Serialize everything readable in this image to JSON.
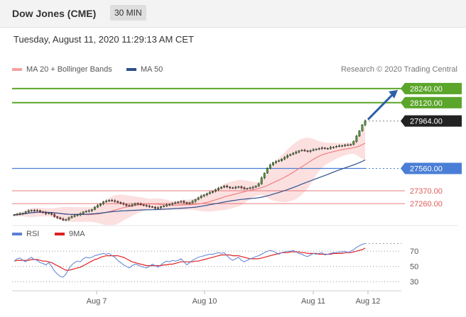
{
  "header": {
    "symbol": "Dow Jones (CME)",
    "timeframe": "30 MIN"
  },
  "timestamp": "Tuesday, August 11, 2020 11:29:13 AM CET",
  "legend": {
    "ma20": {
      "label": "MA 20 + Bollinger Bands",
      "color": "#f08080"
    },
    "ma50": {
      "label": "MA 50",
      "color": "#2d4f8f"
    }
  },
  "credit": "Research © 2020 Trading Central",
  "rsi_legend": {
    "rsi": {
      "label": "RSI",
      "color": "#5b7fd6"
    },
    "ma9": {
      "label": "9MA",
      "color": "#e02020"
    }
  },
  "chart_data": {
    "type": "candlestick",
    "x_ticks": [
      "Aug 7",
      "Aug 10",
      "Aug 11",
      "Aug 12"
    ],
    "price_ylim": [
      27110,
      28330
    ],
    "levels": [
      {
        "value": 28240,
        "label": "28240.00",
        "kind": "resistance",
        "color": "#5aa52a"
      },
      {
        "value": 28120,
        "label": "28120.00",
        "kind": "resistance",
        "color": "#5aa52a"
      },
      {
        "value": 27964,
        "label": "27964.00",
        "kind": "last",
        "color": "#222222"
      },
      {
        "value": 27560,
        "label": "27560.00",
        "kind": "pivot",
        "color": "#4a7ed6"
      },
      {
        "value": 27370,
        "label": "27370.00",
        "kind": "support",
        "color": "#e05a5a"
      },
      {
        "value": 27260,
        "label": "27260.00",
        "kind": "support",
        "color": "#e05a5a"
      }
    ],
    "close": [
      27165,
      27170,
      27175,
      27178,
      27190,
      27200,
      27205,
      27198,
      27202,
      27190,
      27185,
      27175,
      27180,
      27168,
      27150,
      27140,
      27130,
      27120,
      27125,
      27140,
      27150,
      27160,
      27165,
      27175,
      27190,
      27195,
      27200,
      27210,
      27230,
      27245,
      27260,
      27275,
      27282,
      27290,
      27285,
      27280,
      27270,
      27262,
      27255,
      27245,
      27240,
      27250,
      27262,
      27258,
      27250,
      27245,
      27240,
      27235,
      27230,
      27220,
      27225,
      27235,
      27240,
      27250,
      27255,
      27262,
      27268,
      27275,
      27280,
      27270,
      27260,
      27268,
      27280,
      27295,
      27310,
      27325,
      27335,
      27345,
      27355,
      27365,
      27378,
      27390,
      27400,
      27410,
      27402,
      27395,
      27392,
      27400,
      27405,
      27395,
      27385,
      27390,
      27395,
      27400,
      27410,
      27430,
      27480,
      27520,
      27560,
      27590,
      27610,
      27620,
      27625,
      27640,
      27655,
      27670,
      27680,
      27690,
      27700,
      27710,
      27715,
      27710,
      27705,
      27712,
      27720,
      27725,
      27730,
      27735,
      27728,
      27730,
      27740,
      27742,
      27748,
      27752,
      27755,
      27760,
      27758,
      27765,
      27790,
      27835,
      27880,
      27930,
      27964
    ],
    "rsi_ylim": [
      20,
      85
    ],
    "rsi_ticks": [
      70,
      50,
      30
    ],
    "rsi": [
      57,
      60,
      61,
      58,
      56,
      60,
      62,
      59,
      58,
      55,
      54,
      52,
      55,
      50,
      44,
      40,
      37,
      36,
      40,
      47,
      52,
      55,
      57,
      56,
      60,
      62,
      61,
      62,
      64,
      65,
      66,
      67,
      66,
      67,
      64,
      62,
      58,
      55,
      52,
      50,
      48,
      51,
      53,
      52,
      50,
      49,
      48,
      50,
      53,
      51,
      49,
      52,
      55,
      57,
      56,
      58,
      57,
      58,
      60,
      56,
      52,
      55,
      58,
      60,
      62,
      63,
      64,
      65,
      66,
      66,
      67,
      68,
      67,
      68,
      64,
      60,
      58,
      60,
      62,
      58,
      56,
      58,
      60,
      61,
      63,
      64,
      66,
      68,
      70,
      71,
      70,
      68,
      66,
      68,
      69,
      70,
      70,
      71,
      69,
      67,
      66,
      64,
      63,
      65,
      67,
      66,
      67,
      68,
      65,
      66,
      67,
      68,
      68,
      69,
      69,
      70,
      68,
      70,
      72,
      75,
      77,
      79,
      80
    ],
    "rsi_ma9": [
      57,
      58,
      58,
      58,
      58,
      58,
      59,
      59,
      59,
      58,
      57,
      57,
      56,
      55,
      53,
      51,
      49,
      47,
      45,
      45,
      46,
      47,
      48,
      49,
      51,
      53,
      55,
      57,
      59,
      60,
      62,
      63,
      64,
      64,
      64,
      64,
      64,
      63,
      62,
      60,
      58,
      56,
      55,
      54,
      53,
      52,
      51,
      51,
      51,
      51,
      51,
      51,
      52,
      52,
      53,
      53,
      54,
      55,
      56,
      56,
      56,
      56,
      56,
      57,
      57,
      58,
      59,
      60,
      61,
      62,
      63,
      64,
      65,
      65,
      65,
      65,
      64,
      64,
      64,
      63,
      62,
      61,
      60,
      60,
      60,
      60,
      61,
      62,
      63,
      64,
      65,
      66,
      67,
      68,
      68,
      68,
      69,
      69,
      69,
      69,
      68,
      68,
      67,
      67,
      67,
      67,
      66,
      66,
      66,
      66,
      66,
      67,
      67,
      67,
      67,
      68,
      68,
      68,
      69,
      70,
      71,
      72,
      74
    ]
  }
}
